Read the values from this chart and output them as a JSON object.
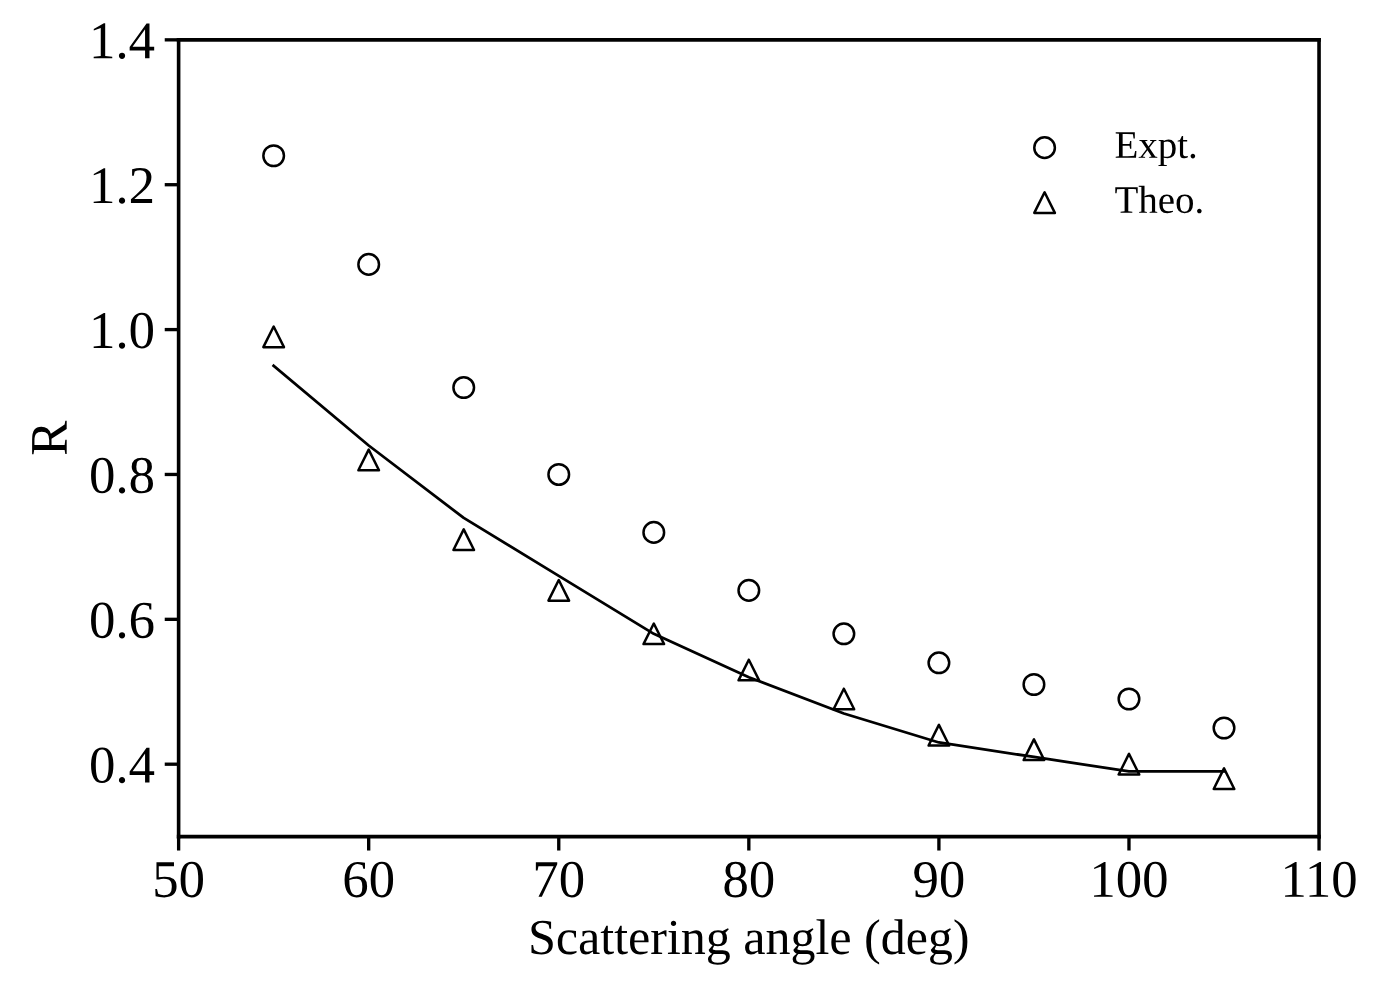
{
  "chart_data": {
    "type": "scatter",
    "xlabel": "Scattering angle (deg)",
    "ylabel": "R",
    "xlim": [
      50,
      110
    ],
    "xticks": [
      50,
      60,
      70,
      80,
      90,
      100,
      110
    ],
    "ylim": [
      0.3,
      1.4
    ],
    "yticks": [
      0.4,
      0.6,
      0.8,
      {
        "value": 1,
        "label": "1.0"
      },
      1.2,
      1.4
    ],
    "grid": false,
    "legend": "top right",
    "series": [
      {
        "name": "Expt.",
        "marker": "circle",
        "color": "#000000",
        "x": [
          55,
          60,
          65,
          70,
          75,
          80,
          85,
          90,
          95,
          100,
          105
        ],
        "values": [
          1.24,
          1.09,
          0.92,
          0.8,
          0.72,
          0.64,
          0.58,
          0.54,
          0.51,
          0.49,
          0.45
        ]
      },
      {
        "name": "Theo.",
        "marker": "triangle",
        "color": "#000000",
        "x": [
          55,
          60,
          65,
          70,
          75,
          80,
          85,
          90,
          95,
          100,
          105
        ],
        "values": [
          0.99,
          0.82,
          0.71,
          0.64,
          0.58,
          0.53,
          0.49,
          0.44,
          0.42,
          0.4,
          0.38
        ]
      },
      {
        "type": "line",
        "color": "#000000",
        "line_style": "solid",
        "x": [
          55,
          60,
          65,
          70,
          75,
          80,
          85,
          90,
          95,
          100,
          105
        ],
        "values": [
          0.95,
          0.84,
          0.74,
          0.66,
          0.58,
          0.52,
          0.47,
          0.43,
          0.41,
          0.39,
          0.39
        ]
      }
    ]
  }
}
